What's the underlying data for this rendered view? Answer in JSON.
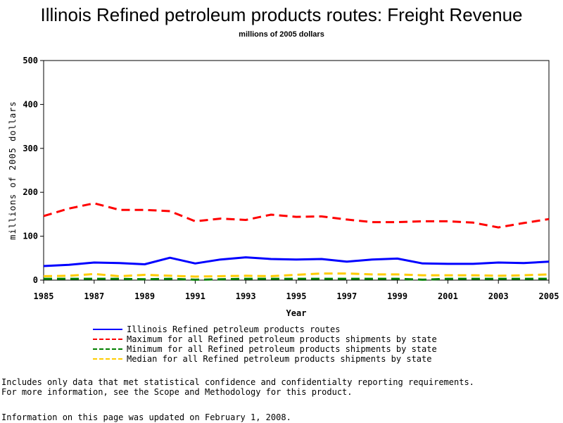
{
  "chart_data": {
    "type": "line",
    "title": "Illinois Refined petroleum products routes: Freight Revenue",
    "subtitle": "millions of 2005 dollars",
    "xlabel": "Year",
    "ylabel": "millions of 2005 dollars",
    "xlim": [
      1985,
      2005
    ],
    "ylim": [
      0,
      500
    ],
    "x_ticks": [
      "1985",
      "1987",
      "1989",
      "1991",
      "1993",
      "1995",
      "1997",
      "1999",
      "2001",
      "2003",
      "2005"
    ],
    "y_ticks": [
      "0",
      "100",
      "200",
      "300",
      "400",
      "500"
    ],
    "grid": false,
    "legend_position": "bottom",
    "x": [
      1985,
      1986,
      1987,
      1988,
      1989,
      1990,
      1991,
      1992,
      1993,
      1994,
      1995,
      1996,
      1997,
      1998,
      1999,
      2000,
      2001,
      2002,
      2003,
      2004,
      2005
    ],
    "series": [
      {
        "name": "Illinois Refined petroleum products routes",
        "color": "#0000ff",
        "style": "solid",
        "values": [
          32,
          35,
          40,
          39,
          36,
          51,
          38,
          47,
          52,
          48,
          47,
          48,
          42,
          47,
          49,
          38,
          37,
          37,
          40,
          39,
          42
        ]
      },
      {
        "name": "Maximum for all Refined petroleum products shipments by state",
        "color": "#ff0000",
        "style": "dashed",
        "values": [
          146,
          163,
          175,
          160,
          160,
          157,
          134,
          140,
          137,
          149,
          144,
          145,
          138,
          132,
          132,
          134,
          134,
          131,
          120,
          130,
          139
        ]
      },
      {
        "name": "Minimum for all Refined petroleum products shipments by state",
        "color": "#008000",
        "style": "dashed",
        "values": [
          3,
          3,
          3,
          3,
          2,
          3,
          1,
          2,
          3,
          3,
          3,
          3,
          3,
          3,
          3,
          1,
          3,
          3,
          3,
          3,
          3
        ]
      },
      {
        "name": "Median for all Refined petroleum products shipments by state",
        "color": "#ffcc00",
        "style": "dashed",
        "values": [
          9,
          10,
          14,
          9,
          12,
          10,
          8,
          9,
          10,
          9,
          12,
          15,
          15,
          13,
          13,
          11,
          11,
          11,
          10,
          11,
          13
        ]
      }
    ]
  },
  "notes": {
    "line1": "Includes only data that met statistical confidence and confidentialty reporting requirements.",
    "line2": "For more information, see the Scope and Methodology for this product.",
    "updated": "Information on this page was updated on February 1, 2008."
  }
}
